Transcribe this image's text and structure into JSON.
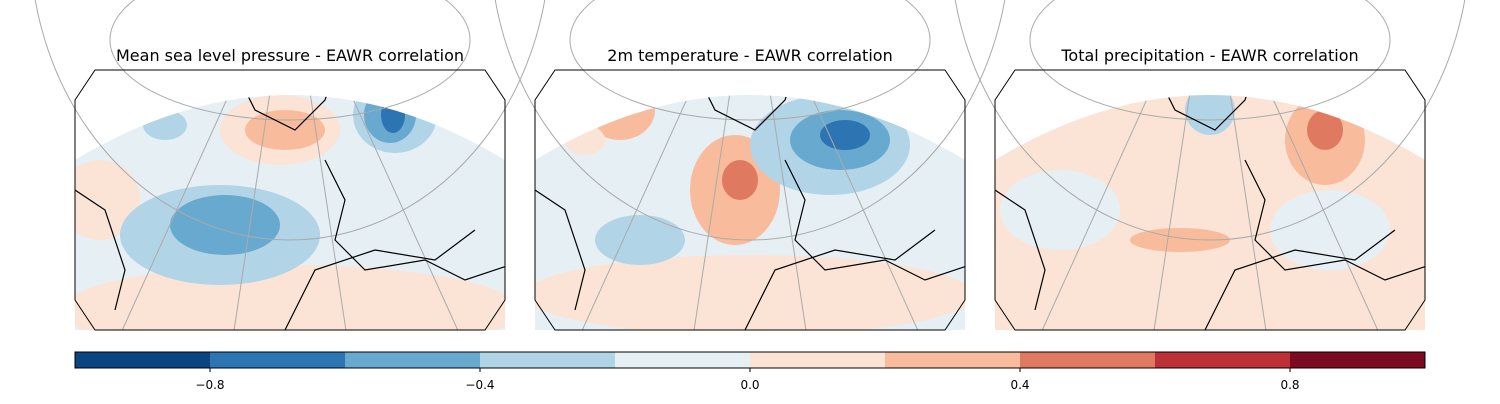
{
  "panels": [
    {
      "title": "Mean sea level pressure - EAWR correlation",
      "background": -0.1,
      "regions": [
        0.1,
        0.1,
        -0.3,
        -0.5,
        -0.3,
        -0.5,
        -0.7,
        0.1,
        0.3,
        -0.3
      ]
    },
    {
      "title": "2m temperature - EAWR correlation",
      "background": -0.1,
      "regions": [
        0.1,
        0.3,
        0.5,
        -0.3,
        -0.5,
        -0.7,
        -0.3,
        0.3,
        0.1
      ]
    },
    {
      "title": "Total precipitation - EAWR correlation",
      "background": 0.1,
      "regions": [
        -0.1,
        -0.1,
        0.3,
        0.5,
        -0.3,
        0.3
      ]
    }
  ],
  "colorbar": {
    "levels": [
      -1,
      -0.8,
      -0.6,
      -0.4,
      -0.2,
      0,
      0.2,
      0.4,
      0.6,
      0.8,
      1
    ],
    "colors": [
      "#0b457f",
      "#2d74b3",
      "#68a9cf",
      "#b1d4e7",
      "#e6eff4",
      "#fbe4d6",
      "#f8bc9d",
      "#df7a60",
      "#bd3036",
      "#7c0a22"
    ],
    "ticks": [
      {
        "value": -0.8,
        "label": "−0.8"
      },
      {
        "value": -0.4,
        "label": "−0.4"
      },
      {
        "value": 0,
        "label": "0.0"
      },
      0.4,
      0.8
    ]
  }
}
